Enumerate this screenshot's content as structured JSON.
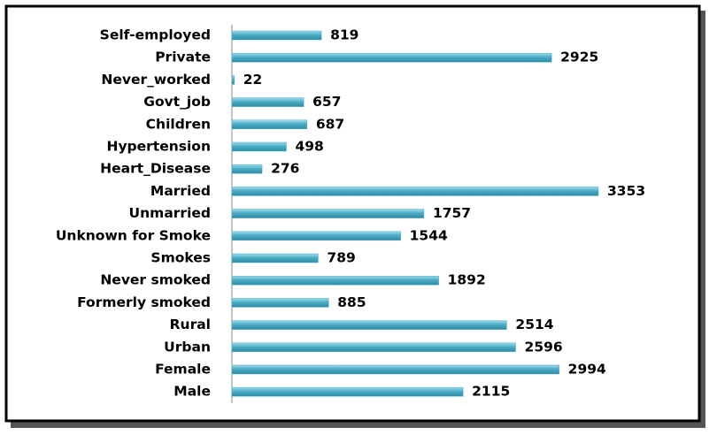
{
  "chart_data": {
    "type": "bar",
    "orientation": "horizontal",
    "color": "#4bacc6",
    "categories": [
      "Self-employed",
      "Private",
      "Never_worked",
      "Govt_job",
      "Children",
      "Hypertension",
      "Heart_Disease",
      "Married",
      "Unmarried",
      "Unknown for Smoke",
      "Smokes",
      "Never smoked",
      "Formerly smoked",
      "Rural",
      "Urban",
      "Female",
      "Male"
    ],
    "values": [
      819,
      2925,
      22,
      657,
      687,
      498,
      276,
      3353,
      1757,
      1544,
      789,
      1892,
      885,
      2514,
      2596,
      2994,
      2115
    ]
  }
}
